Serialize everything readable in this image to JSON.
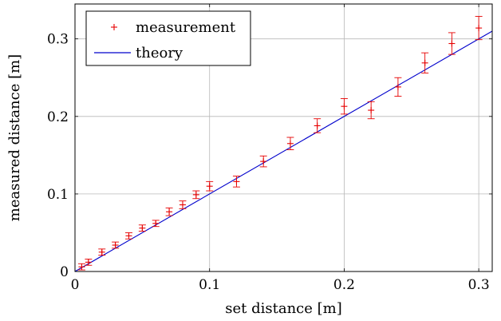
{
  "chart_data": {
    "type": "scatter",
    "xlabel": "set distance [m]",
    "ylabel": "measured distance [m]",
    "xlim": [
      0,
      0.31
    ],
    "ylim": [
      0,
      0.345
    ],
    "x_ticks": [
      0,
      0.1,
      0.2,
      0.3
    ],
    "x_tick_labels": [
      "0",
      "0.1",
      "0.2",
      "0.3"
    ],
    "y_ticks": [
      0,
      0.1,
      0.2,
      0.3
    ],
    "y_tick_labels": [
      "0",
      "0.1",
      "0.2",
      "0.3"
    ],
    "grid": true,
    "legend_position": "top-left",
    "series": [
      {
        "name": "measurement",
        "kind": "errorbar-points",
        "color": "#e60000",
        "x": [
          0.005,
          0.01,
          0.02,
          0.03,
          0.04,
          0.05,
          0.06,
          0.07,
          0.08,
          0.09,
          0.1,
          0.12,
          0.14,
          0.16,
          0.18,
          0.2,
          0.22,
          0.24,
          0.26,
          0.28,
          0.3
        ],
        "y": [
          0.006,
          0.012,
          0.025,
          0.034,
          0.046,
          0.056,
          0.062,
          0.077,
          0.086,
          0.099,
          0.11,
          0.116,
          0.142,
          0.165,
          0.188,
          0.213,
          0.208,
          0.238,
          0.269,
          0.294,
          0.314
        ],
        "yerr": [
          0.004,
          0.004,
          0.004,
          0.004,
          0.004,
          0.004,
          0.004,
          0.005,
          0.005,
          0.005,
          0.006,
          0.007,
          0.007,
          0.008,
          0.009,
          0.01,
          0.011,
          0.012,
          0.013,
          0.014,
          0.015
        ]
      },
      {
        "name": "theory",
        "kind": "line",
        "color": "#0000cc",
        "x": [
          0,
          0.31
        ],
        "y": [
          0,
          0.31
        ]
      }
    ]
  }
}
